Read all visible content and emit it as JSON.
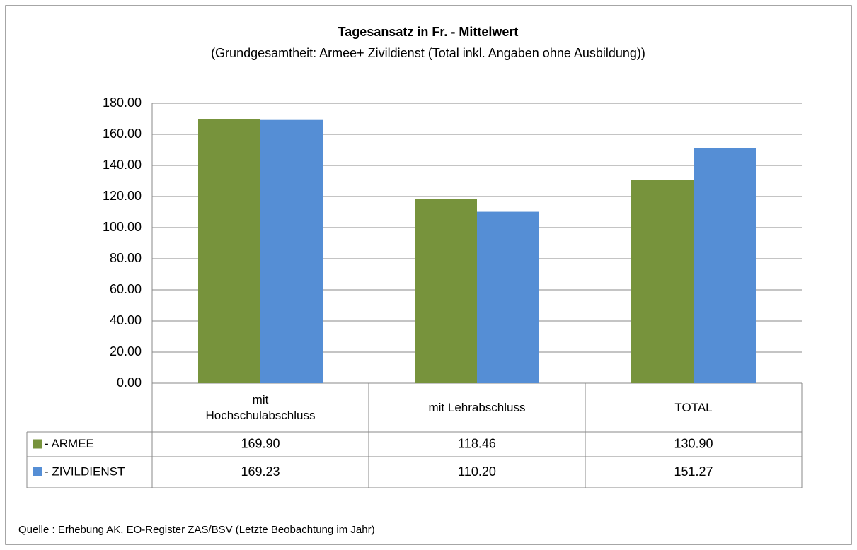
{
  "chart_data": {
    "type": "bar",
    "title": "Tagesansatz in Fr. - Mittelwert",
    "subtitle": "(Grundgesamtheit: Armee+ Zivildienst (Total inkl. Angaben ohne Ausbildung))",
    "categories": [
      "mit Hochschulabschluss",
      "mit Lehrabschluss",
      "TOTAL"
    ],
    "series": [
      {
        "name": "- ARMEE",
        "color": "#77933c",
        "values": [
          169.9,
          118.46,
          130.9
        ],
        "value_labels": [
          "169.90",
          "118.46",
          "130.90"
        ]
      },
      {
        "name": "- ZIVILDIENST",
        "color": "#558ed5",
        "values": [
          169.23,
          110.2,
          151.27
        ],
        "value_labels": [
          "169.23",
          "110.20",
          "151.27"
        ]
      }
    ],
    "ylim": [
      0,
      180
    ],
    "yticks": [
      {
        "value": 0,
        "label": "0.00"
      },
      {
        "value": 20,
        "label": "20.00"
      },
      {
        "value": 40,
        "label": "40.00"
      },
      {
        "value": 60,
        "label": "60.00"
      },
      {
        "value": 80,
        "label": "80.00"
      },
      {
        "value": 100,
        "label": "100.00"
      },
      {
        "value": 120,
        "label": "120.00"
      },
      {
        "value": 140,
        "label": "140.00"
      },
      {
        "value": 160,
        "label": "160.00"
      },
      {
        "value": 180,
        "label": "180.00"
      }
    ],
    "grid": true,
    "source": "Quelle : Erhebung AK,  EO-Register ZAS/BSV (Letzte Beobachtung im Jahr)"
  }
}
